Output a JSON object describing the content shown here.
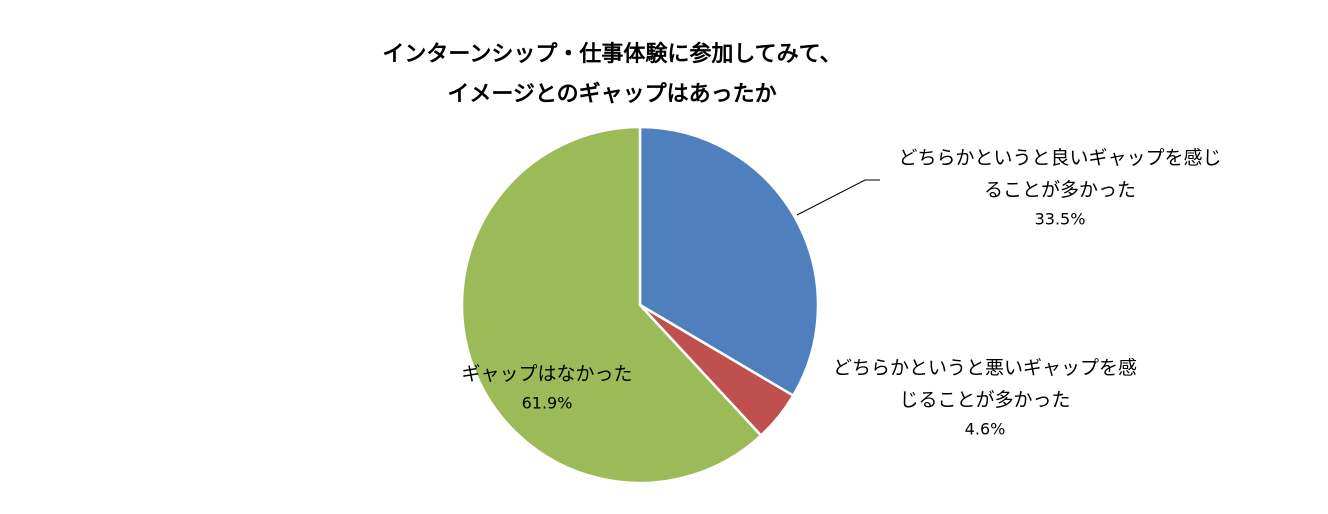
{
  "chart_data": {
    "type": "pie",
    "title": [
      "インターンシップ・仕事体験に参加してみて、",
      "イメージとのギャップはあったか"
    ],
    "categories": [
      "どちらかというと良いギャップを感じることが多かった",
      "どちらかというと悪いギャップを感じることが多かった",
      "ギャップはなかった"
    ],
    "values": [
      33.5,
      4.6,
      61.9
    ],
    "value_labels": [
      "33.5%",
      "4.6%",
      "61.9%"
    ],
    "colors": [
      "#4f7fbc",
      "#c0504d",
      "#9bbb59"
    ]
  }
}
